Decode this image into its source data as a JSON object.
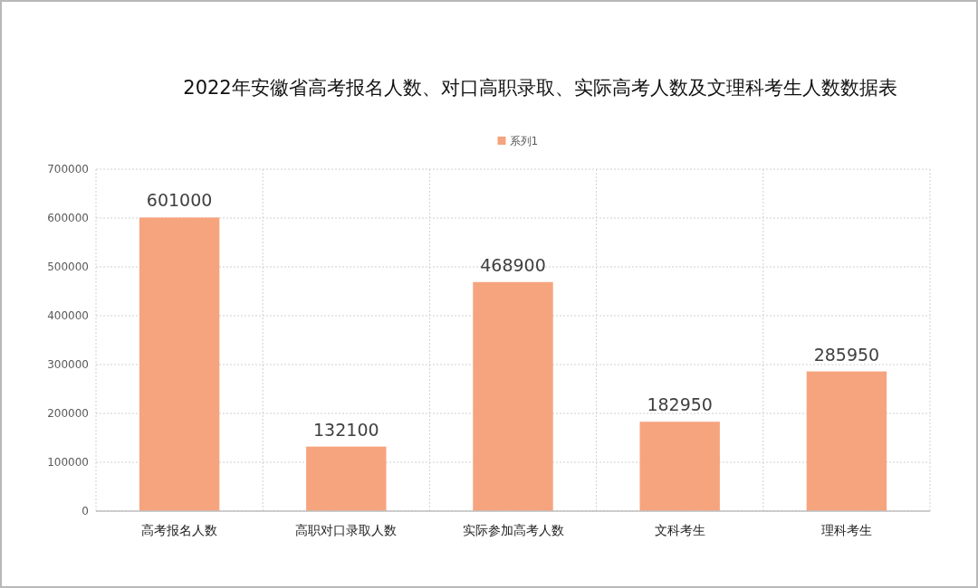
{
  "chart_data": {
    "type": "bar",
    "title": "2022年安徽省高考报名人数、对口高职录取、实际高考人数及文理科考生人数数据表",
    "categories": [
      "高考报名人数",
      "高职对口录取人数",
      "实际参加高考人数",
      "文科考生",
      "理科考生"
    ],
    "series": [
      {
        "name": "系列1",
        "color": "#f6a47e",
        "values": [
          601000,
          132100,
          468900,
          182950,
          285950
        ]
      }
    ],
    "ylim": [
      0,
      700000
    ],
    "yticks": [
      0,
      100000,
      200000,
      300000,
      400000,
      500000,
      600000,
      700000
    ],
    "grid": true,
    "legend": "top",
    "data_labels": true
  }
}
